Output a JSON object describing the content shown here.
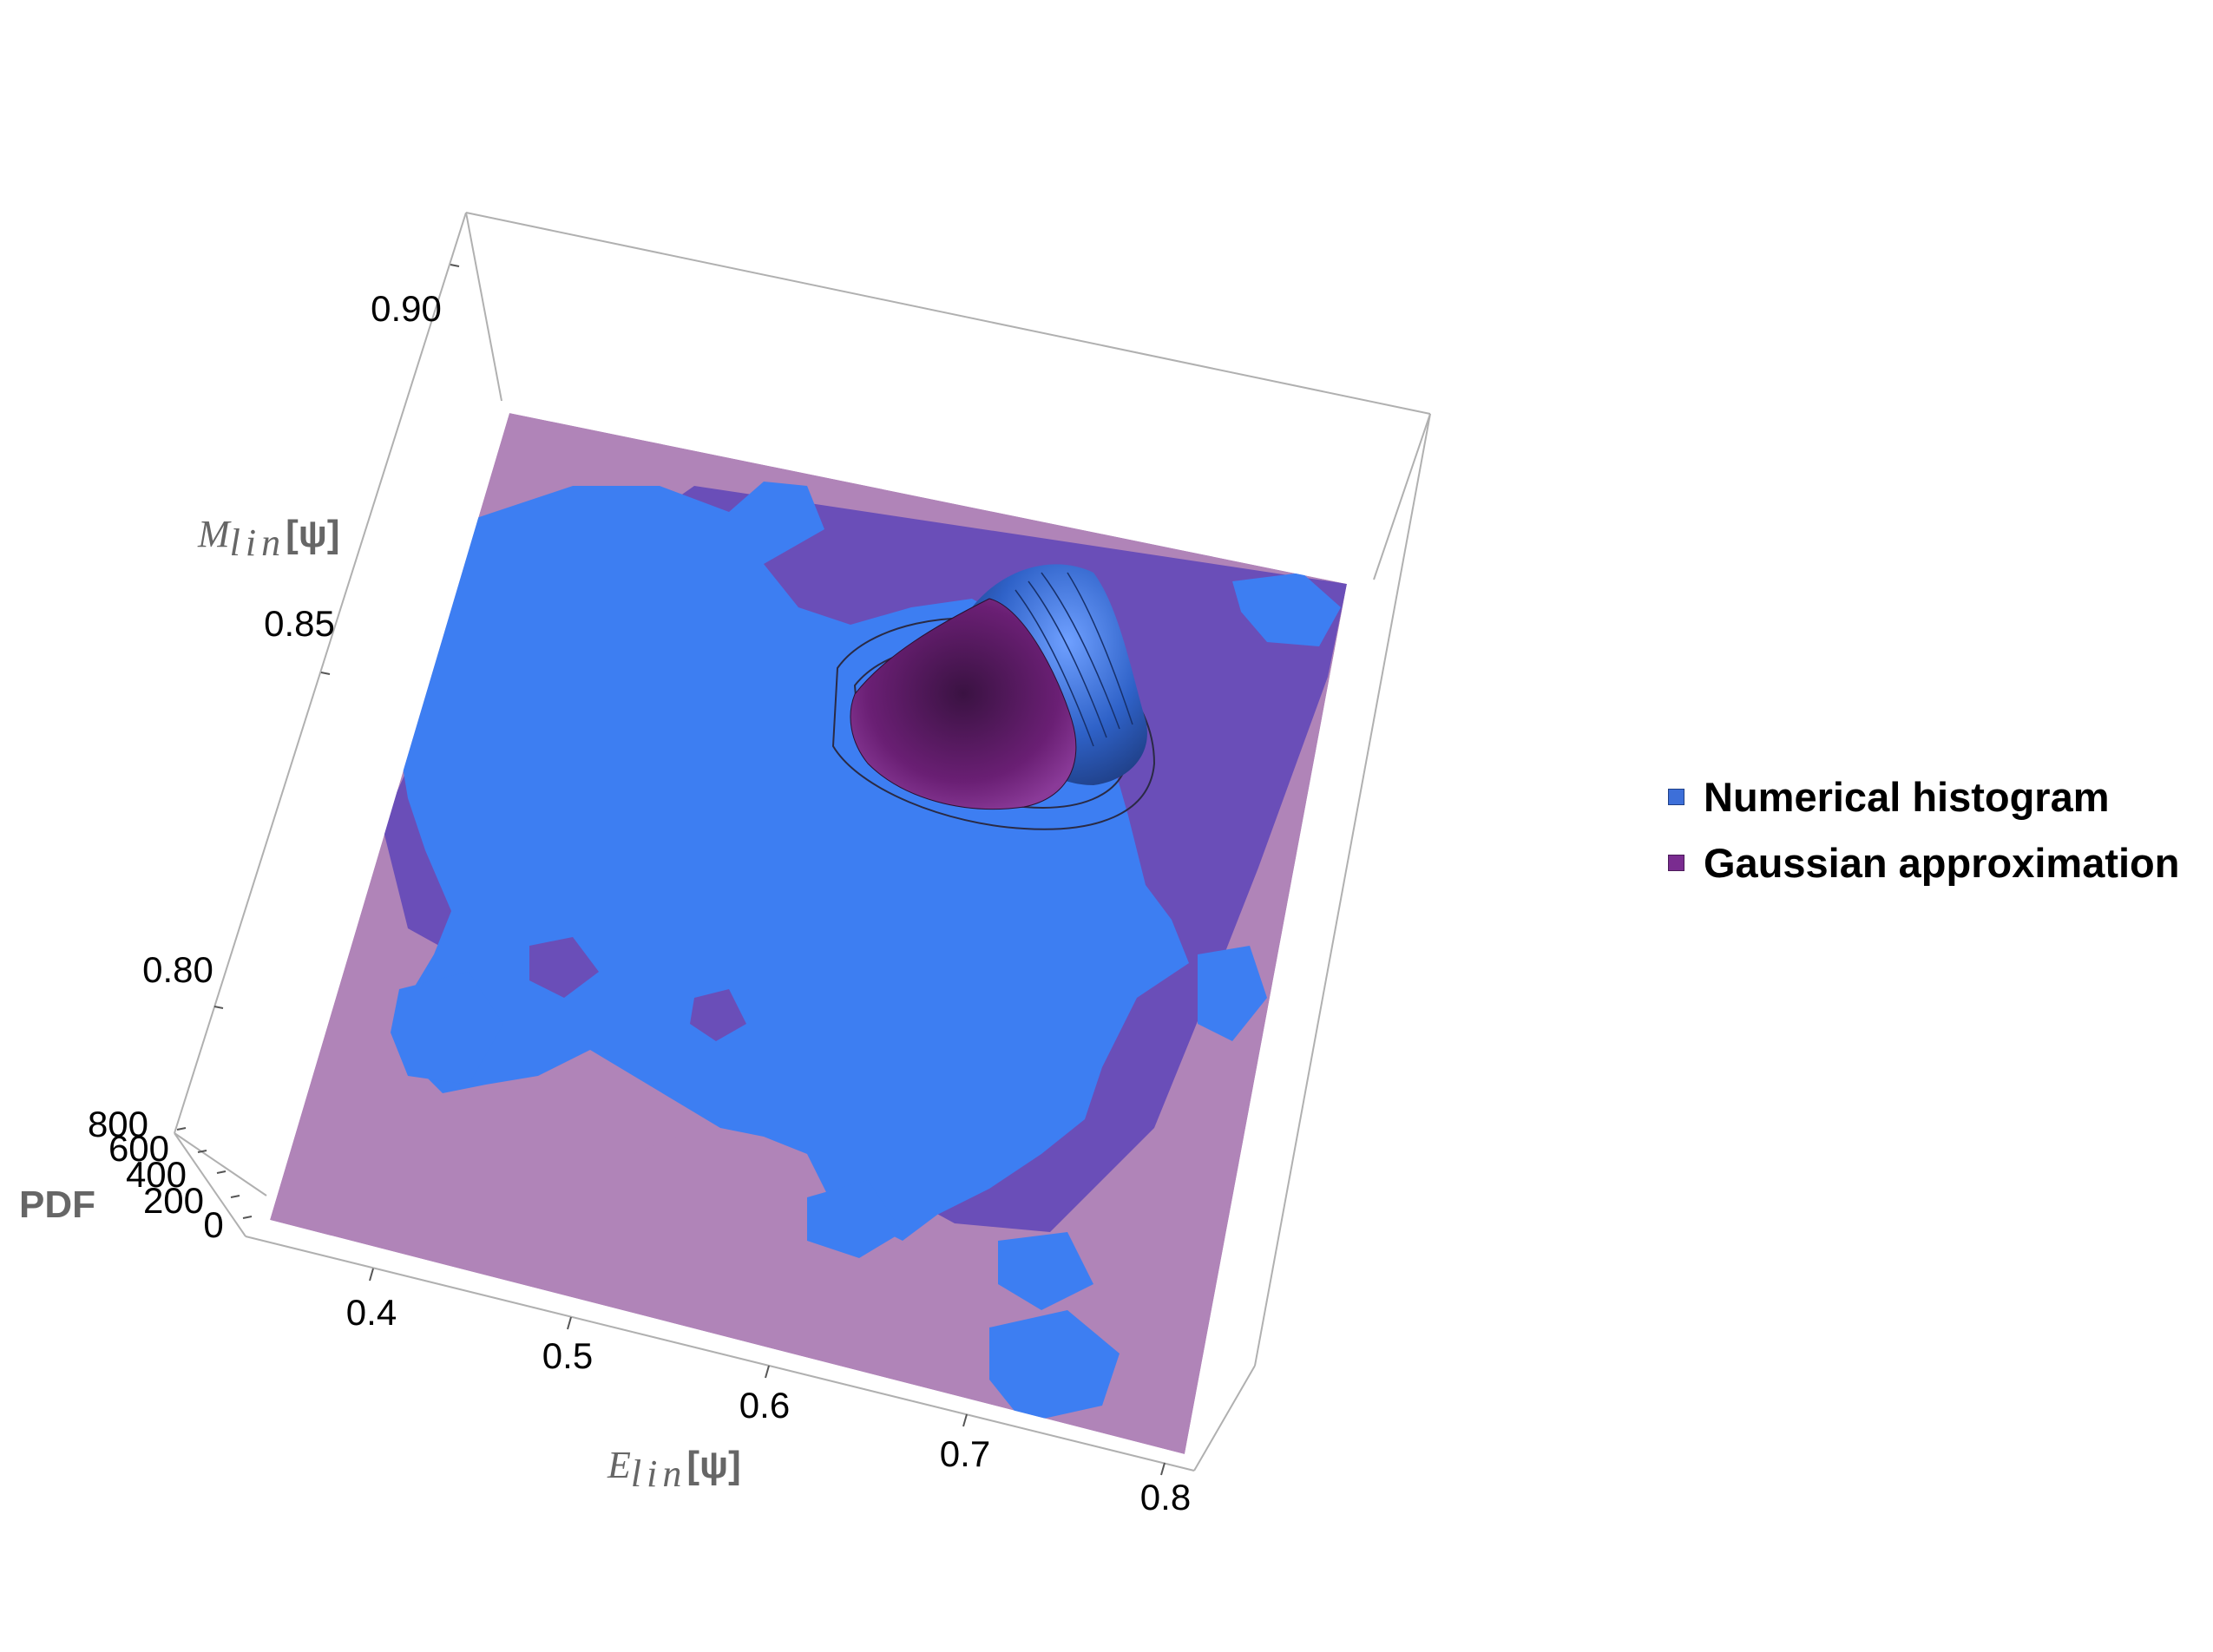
{
  "chart_data": {
    "type": "surface3d",
    "title": "",
    "view": "3D perspective, looking down onto the E-M plane",
    "axes": {
      "x": {
        "label_main": "E",
        "label_sub": "lin",
        "label_bracket": "[ψ]",
        "ticks": [
          "0.4",
          "0.5",
          "0.6",
          "0.7",
          "0.8"
        ],
        "range": [
          0.35,
          0.8
        ]
      },
      "y": {
        "label_main": "M",
        "label_sub": "lin",
        "label_bracket": "[ψ]",
        "ticks": [
          "0.80",
          "0.85",
          "0.90"
        ],
        "range": [
          0.77,
          0.91
        ]
      },
      "z": {
        "label": "PDF",
        "ticks": [
          "0",
          "200",
          "400",
          "600",
          "800"
        ],
        "range": [
          0,
          800
        ]
      }
    },
    "series": [
      {
        "name": "Numerical histogram",
        "color": "#3d7ef2",
        "peak": {
          "E": 0.71,
          "M": 0.862,
          "PDF": 800
        }
      },
      {
        "name": "Gaussian approximation",
        "color": "#7a2c90",
        "peak": {
          "E": 0.69,
          "M": 0.852,
          "PDF": 640
        }
      }
    ],
    "legend_position": "right"
  },
  "colors": {
    "numerical": "#3d7ef2",
    "gaussian_light": "#b084b8",
    "gaussian_dark": "#6a4eb8",
    "box": "#aaaaaa"
  }
}
